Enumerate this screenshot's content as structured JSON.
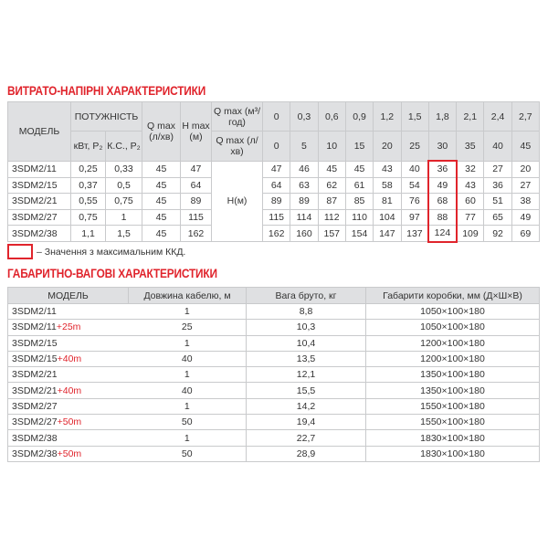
{
  "section1": {
    "title": "ВИТРАТО-НАПІРНІ ХАРАКТЕРИСТИКИ",
    "headers": {
      "model": "МОДЕЛЬ",
      "power": "ПОТУЖНІСТЬ",
      "kw": "кВт, P₂",
      "hp": "К.С., P₂",
      "qmax": "Q max (л/хв)",
      "hmax": "H max (м)",
      "qmax_m3": "Q max (м³/год)",
      "qmax_lmin": "Q max (л/хв)",
      "hm": "H(м)"
    },
    "flow_m3": [
      "0",
      "0,3",
      "0,6",
      "0,9",
      "1,2",
      "1,5",
      "1,8",
      "2,1",
      "2,4",
      "2,7"
    ],
    "flow_lmin": [
      "0",
      "5",
      "10",
      "15",
      "20",
      "25",
      "30",
      "35",
      "40",
      "45"
    ],
    "rows": [
      {
        "model": "3SDM2/11",
        "kw": "0,25",
        "hp": "0,33",
        "q": "45",
        "h": "47",
        "heads": [
          "47",
          "46",
          "45",
          "45",
          "43",
          "40",
          "36",
          "32",
          "27",
          "20"
        ]
      },
      {
        "model": "3SDM2/15",
        "kw": "0,37",
        "hp": "0,5",
        "q": "45",
        "h": "64",
        "heads": [
          "64",
          "63",
          "62",
          "61",
          "58",
          "54",
          "49",
          "43",
          "36",
          "27"
        ]
      },
      {
        "model": "3SDM2/21",
        "kw": "0,55",
        "hp": "0,75",
        "q": "45",
        "h": "89",
        "heads": [
          "89",
          "89",
          "87",
          "85",
          "81",
          "76",
          "68",
          "60",
          "51",
          "38"
        ]
      },
      {
        "model": "3SDM2/27",
        "kw": "0,75",
        "hp": "1",
        "q": "45",
        "h": "115",
        "heads": [
          "115",
          "114",
          "112",
          "110",
          "104",
          "97",
          "88",
          "77",
          "65",
          "49"
        ]
      },
      {
        "model": "3SDM2/38",
        "kw": "1,1",
        "hp": "1,5",
        "q": "45",
        "h": "162",
        "heads": [
          "162",
          "160",
          "157",
          "154",
          "147",
          "137",
          "124",
          "109",
          "92",
          "69"
        ]
      }
    ],
    "legend": "– Значення з максимальним ККД.",
    "highlight_color": "#e0242c"
  },
  "section2": {
    "title": "ГАБАРИТНО-ВАГОВІ ХАРАКТЕРИСТИКИ",
    "headers": [
      "МОДЕЛЬ",
      "Довжина кабелю, м",
      "Вага бруто, кг",
      "Габарити коробки, мм (Д×Ш×В)"
    ],
    "rows": [
      {
        "model": "3SDM2/11",
        "suffix": "",
        "cable": "1",
        "weight": "8,8",
        "box": "1050×100×180"
      },
      {
        "model": "3SDM2/11",
        "suffix": "+25m",
        "cable": "25",
        "weight": "10,3",
        "box": "1050×100×180"
      },
      {
        "model": "3SDM2/15",
        "suffix": "",
        "cable": "1",
        "weight": "10,4",
        "box": "1200×100×180"
      },
      {
        "model": "3SDM2/15",
        "suffix": "+40m",
        "cable": "40",
        "weight": "13,5",
        "box": "1200×100×180"
      },
      {
        "model": "3SDM2/21",
        "suffix": "",
        "cable": "1",
        "weight": "12,1",
        "box": "1350×100×180"
      },
      {
        "model": "3SDM2/21",
        "suffix": "+40m",
        "cable": "40",
        "weight": "15,5",
        "box": "1350×100×180"
      },
      {
        "model": "3SDM2/27",
        "suffix": "",
        "cable": "1",
        "weight": "14,2",
        "box": "1550×100×180"
      },
      {
        "model": "3SDM2/27",
        "suffix": "+50m",
        "cable": "50",
        "weight": "19,4",
        "box": "1550×100×180"
      },
      {
        "model": "3SDM2/38",
        "suffix": "",
        "cable": "1",
        "weight": "22,7",
        "box": "1830×100×180"
      },
      {
        "model": "3SDM2/38",
        "suffix": "+50m",
        "cable": "50",
        "weight": "28,9",
        "box": "1830×100×180"
      }
    ]
  }
}
